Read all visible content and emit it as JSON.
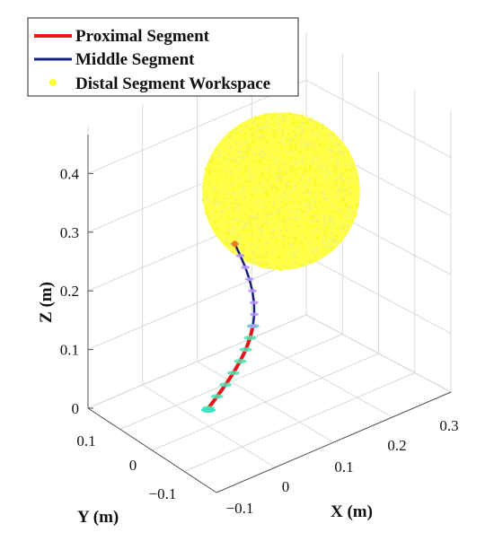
{
  "chart_data": {
    "type": "scatter",
    "title": "",
    "xlabel": "X (m)",
    "ylabel": "Y (m)",
    "zlabel": "Z (m)",
    "xlim": [
      -0.15,
      0.35
    ],
    "ylim": [
      -0.15,
      0.15
    ],
    "zlim": [
      0,
      0.45
    ],
    "x_ticks": [
      "−0.1",
      "0",
      "0.1",
      "0.2",
      "0.3"
    ],
    "y_ticks": [
      "0.1",
      "0",
      "−0.1"
    ],
    "z_ticks": [
      "0",
      "0.1",
      "0.2",
      "0.3",
      "0.4"
    ],
    "grid": true,
    "legend_position": "top-left",
    "series": [
      {
        "name": "Proximal Segment",
        "kind": "line",
        "color": "#e8151b",
        "z": [
          0.0,
          0.02,
          0.04,
          0.06,
          0.08,
          0.1,
          0.12,
          0.14
        ]
      },
      {
        "name": "Middle Segment",
        "kind": "line",
        "color": "#16217a",
        "z": [
          0.14,
          0.16,
          0.18,
          0.2,
          0.22,
          0.24,
          0.26,
          0.28
        ]
      },
      {
        "name": "Distal Segment Workspace",
        "kind": "scatter",
        "color": "#ffff33",
        "center_z": 0.37,
        "radius": 0.11
      }
    ]
  }
}
